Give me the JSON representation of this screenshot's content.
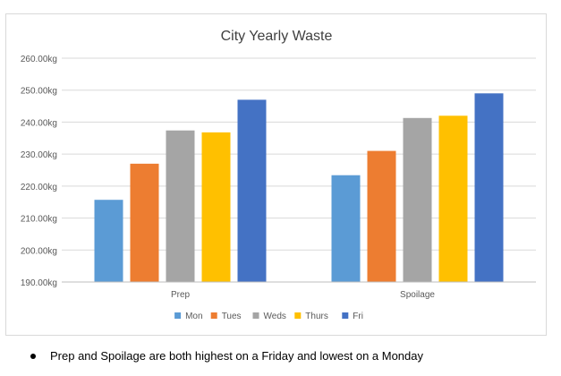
{
  "chart_data": {
    "type": "bar",
    "title": "City Yearly Waste",
    "categories": [
      "Prep",
      "Spoilage"
    ],
    "series": [
      {
        "name": "Mon",
        "color": "#5B9BD5",
        "values": [
          215.7,
          223.4
        ]
      },
      {
        "name": "Tues",
        "color": "#ED7D31",
        "values": [
          227.0,
          231.0
        ]
      },
      {
        "name": "Weds",
        "color": "#A5A5A5",
        "values": [
          237.4,
          241.3
        ]
      },
      {
        "name": "Thurs",
        "color": "#FFC000",
        "values": [
          236.8,
          242.0
        ]
      },
      {
        "name": "Fri",
        "color": "#4472C4",
        "values": [
          247.0,
          249.0
        ]
      }
    ],
    "ylim": [
      190,
      260
    ],
    "yticks": [
      "190.00kg",
      "200.00kg",
      "210.00kg",
      "220.00kg",
      "230.00kg",
      "240.00kg",
      "250.00kg",
      "260.00kg"
    ],
    "ytick_values": [
      190,
      200,
      210,
      220,
      230,
      240,
      250,
      260
    ],
    "grid": true,
    "legend_position": "bottom",
    "xlabel": "",
    "ylabel": ""
  },
  "notes": {
    "bullet": "Prep and Spoilage are both highest on a Friday and lowest on a Monday"
  }
}
